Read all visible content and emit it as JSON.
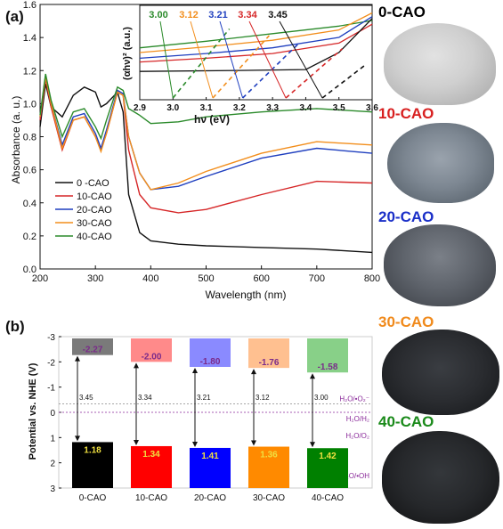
{
  "panel_a": {
    "label": "(a)",
    "xlabel": "Wavelength (nm)",
    "ylabel": "Absorbance (a. u.)",
    "inset": {
      "xlabel": "hν (eV)",
      "ylabel": "(αhν)² (a.u.)",
      "values": [
        "3.00",
        "3.12",
        "3.21",
        "3.34",
        "3.45"
      ]
    }
  },
  "panel_b": {
    "label": "(b)",
    "ylabel": "Potential vs. NHE (V)",
    "ref_labels": [
      "H₂O/•O₂⁻",
      "H₂O/H₂",
      "H₂O/O₂",
      "H₂O/•OH"
    ]
  },
  "photos": {
    "labels": [
      "0-CAO",
      "10-CAO",
      "20-CAO",
      "30-CAO",
      "40-CAO"
    ],
    "label_colors": [
      "#111111",
      "#d82020",
      "#1a2fc8",
      "#f08a1c",
      "#1a8a1a"
    ]
  },
  "chart_data": [
    {
      "type": "line",
      "xlim": [
        200,
        800
      ],
      "ylim": [
        0,
        1.6
      ],
      "xticks": [
        200,
        300,
        400,
        500,
        600,
        700,
        800
      ],
      "yticks": [
        0.0,
        0.2,
        0.4,
        0.6,
        0.8,
        1.0,
        1.2,
        1.4,
        1.6
      ],
      "legend_position": "bottom-left",
      "series": [
        {
          "name": "0 -CAO",
          "color": "#111111",
          "x": [
            200,
            210,
            220,
            240,
            260,
            280,
            300,
            310,
            320,
            340,
            350,
            360,
            380,
            400,
            450,
            500,
            600,
            700,
            800
          ],
          "y": [
            0.86,
            1.12,
            0.98,
            0.92,
            1.05,
            1.1,
            1.07,
            0.98,
            1.0,
            1.07,
            0.95,
            0.45,
            0.22,
            0.17,
            0.15,
            0.14,
            0.13,
            0.12,
            0.1
          ]
        },
        {
          "name": "10-CAO",
          "color": "#d62728",
          "x": [
            200,
            210,
            220,
            240,
            260,
            280,
            300,
            310,
            320,
            340,
            350,
            360,
            380,
            400,
            450,
            500,
            600,
            700,
            800
          ],
          "y": [
            0.9,
            1.15,
            0.98,
            0.72,
            0.9,
            0.92,
            0.8,
            0.72,
            0.82,
            1.07,
            1.05,
            0.72,
            0.45,
            0.37,
            0.34,
            0.36,
            0.45,
            0.53,
            0.52
          ]
        },
        {
          "name": "20-CAO",
          "color": "#1f3fbf",
          "x": [
            200,
            210,
            220,
            240,
            260,
            280,
            300,
            310,
            320,
            340,
            350,
            360,
            380,
            400,
            450,
            500,
            600,
            700,
            800
          ],
          "y": [
            0.92,
            1.17,
            1.0,
            0.75,
            0.92,
            0.94,
            0.82,
            0.73,
            0.84,
            1.08,
            1.06,
            0.8,
            0.58,
            0.48,
            0.5,
            0.56,
            0.67,
            0.73,
            0.7
          ]
        },
        {
          "name": "30-CAO",
          "color": "#f28e1c",
          "x": [
            200,
            210,
            220,
            240,
            260,
            280,
            300,
            310,
            320,
            340,
            350,
            360,
            380,
            400,
            450,
            500,
            600,
            700,
            800
          ],
          "y": [
            0.92,
            1.16,
            1.0,
            0.73,
            0.9,
            0.92,
            0.8,
            0.71,
            0.82,
            1.07,
            1.05,
            0.8,
            0.58,
            0.48,
            0.52,
            0.59,
            0.7,
            0.77,
            0.75
          ]
        },
        {
          "name": "40-CAO",
          "color": "#2a8a2a",
          "x": [
            200,
            210,
            220,
            240,
            260,
            280,
            300,
            310,
            320,
            340,
            350,
            360,
            380,
            400,
            450,
            500,
            600,
            700,
            800
          ],
          "y": [
            0.93,
            1.18,
            1.02,
            0.8,
            0.95,
            0.97,
            0.86,
            0.79,
            0.9,
            1.1,
            1.08,
            0.97,
            0.93,
            0.88,
            0.89,
            0.92,
            0.95,
            0.97,
            0.95
          ]
        }
      ]
    },
    {
      "type": "line",
      "title": "",
      "xlim": [
        2.9,
        3.6
      ],
      "xticks": [
        2.9,
        3.0,
        3.1,
        3.2,
        3.3,
        3.4,
        3.5,
        3.6
      ],
      "xlabel": "hν (eV)",
      "ylabel": "(αhν)² (a.u.)",
      "band_gaps_eV": [
        3.0,
        3.12,
        3.21,
        3.34,
        3.45
      ],
      "series": [
        {
          "name": "40-CAO",
          "color": "#2a8a2a",
          "x": [
            2.9,
            3.1,
            3.3,
            3.5,
            3.6
          ],
          "y": [
            0.55,
            0.62,
            0.7,
            0.78,
            0.84
          ]
        },
        {
          "name": "30-CAO",
          "color": "#f28e1c",
          "x": [
            2.9,
            3.1,
            3.3,
            3.5,
            3.6
          ],
          "y": [
            0.5,
            0.56,
            0.63,
            0.74,
            0.92
          ]
        },
        {
          "name": "20-CAO",
          "color": "#1f3fbf",
          "x": [
            2.9,
            3.1,
            3.3,
            3.5,
            3.6
          ],
          "y": [
            0.44,
            0.49,
            0.55,
            0.66,
            0.88
          ]
        },
        {
          "name": "10-CAO",
          "color": "#d62728",
          "x": [
            2.9,
            3.1,
            3.3,
            3.5,
            3.6
          ],
          "y": [
            0.4,
            0.44,
            0.49,
            0.6,
            0.8
          ]
        },
        {
          "name": "0 -CAO",
          "color": "#111111",
          "x": [
            2.9,
            3.2,
            3.4,
            3.5,
            3.6
          ],
          "y": [
            0.3,
            0.31,
            0.32,
            0.5,
            0.86
          ]
        }
      ]
    },
    {
      "type": "bar",
      "categories": [
        "0-CAO",
        "10-CAO",
        "20-CAO",
        "30-CAO",
        "40-CAO"
      ],
      "cb_potential_V": [
        -2.27,
        -2.0,
        -1.8,
        -1.76,
        -1.58
      ],
      "vb_potential_V": [
        1.18,
        1.34,
        1.41,
        1.36,
        1.42
      ],
      "band_gap_eV": [
        3.45,
        3.34,
        3.21,
        3.12,
        3.0
      ],
      "cb_labels": [
        "-2.27",
        "-2.00",
        "-1.80",
        "-1.76",
        "-1.58"
      ],
      "vb_labels": [
        "1.18",
        "1.34",
        "1.41",
        "1.36",
        "1.42"
      ],
      "gap_labels": [
        "3.45",
        "3.34",
        "3.21",
        "3.12",
        "3.00"
      ],
      "colors": [
        "#000000",
        "#ff0000",
        "#0000ff",
        "#ff8a00",
        "#008000"
      ],
      "light_colors": [
        "#7a7a7a",
        "#ff8a8a",
        "#8a8aff",
        "#ffc090",
        "#88d088"
      ],
      "yticks": [
        -3,
        -2,
        -1,
        0,
        1,
        2,
        3
      ],
      "ylim": [
        -3,
        3
      ],
      "ylabel": "Potential vs. NHE (V)",
      "reference_levels": [
        {
          "label": "H₂O/•O₂⁻",
          "value": -0.33
        },
        {
          "label": "H₂O/H₂",
          "value": 0.0
        },
        {
          "label": "H₂O/O₂",
          "value": 1.23
        },
        {
          "label": "H₂O/•OH",
          "value": 2.4
        }
      ]
    }
  ]
}
